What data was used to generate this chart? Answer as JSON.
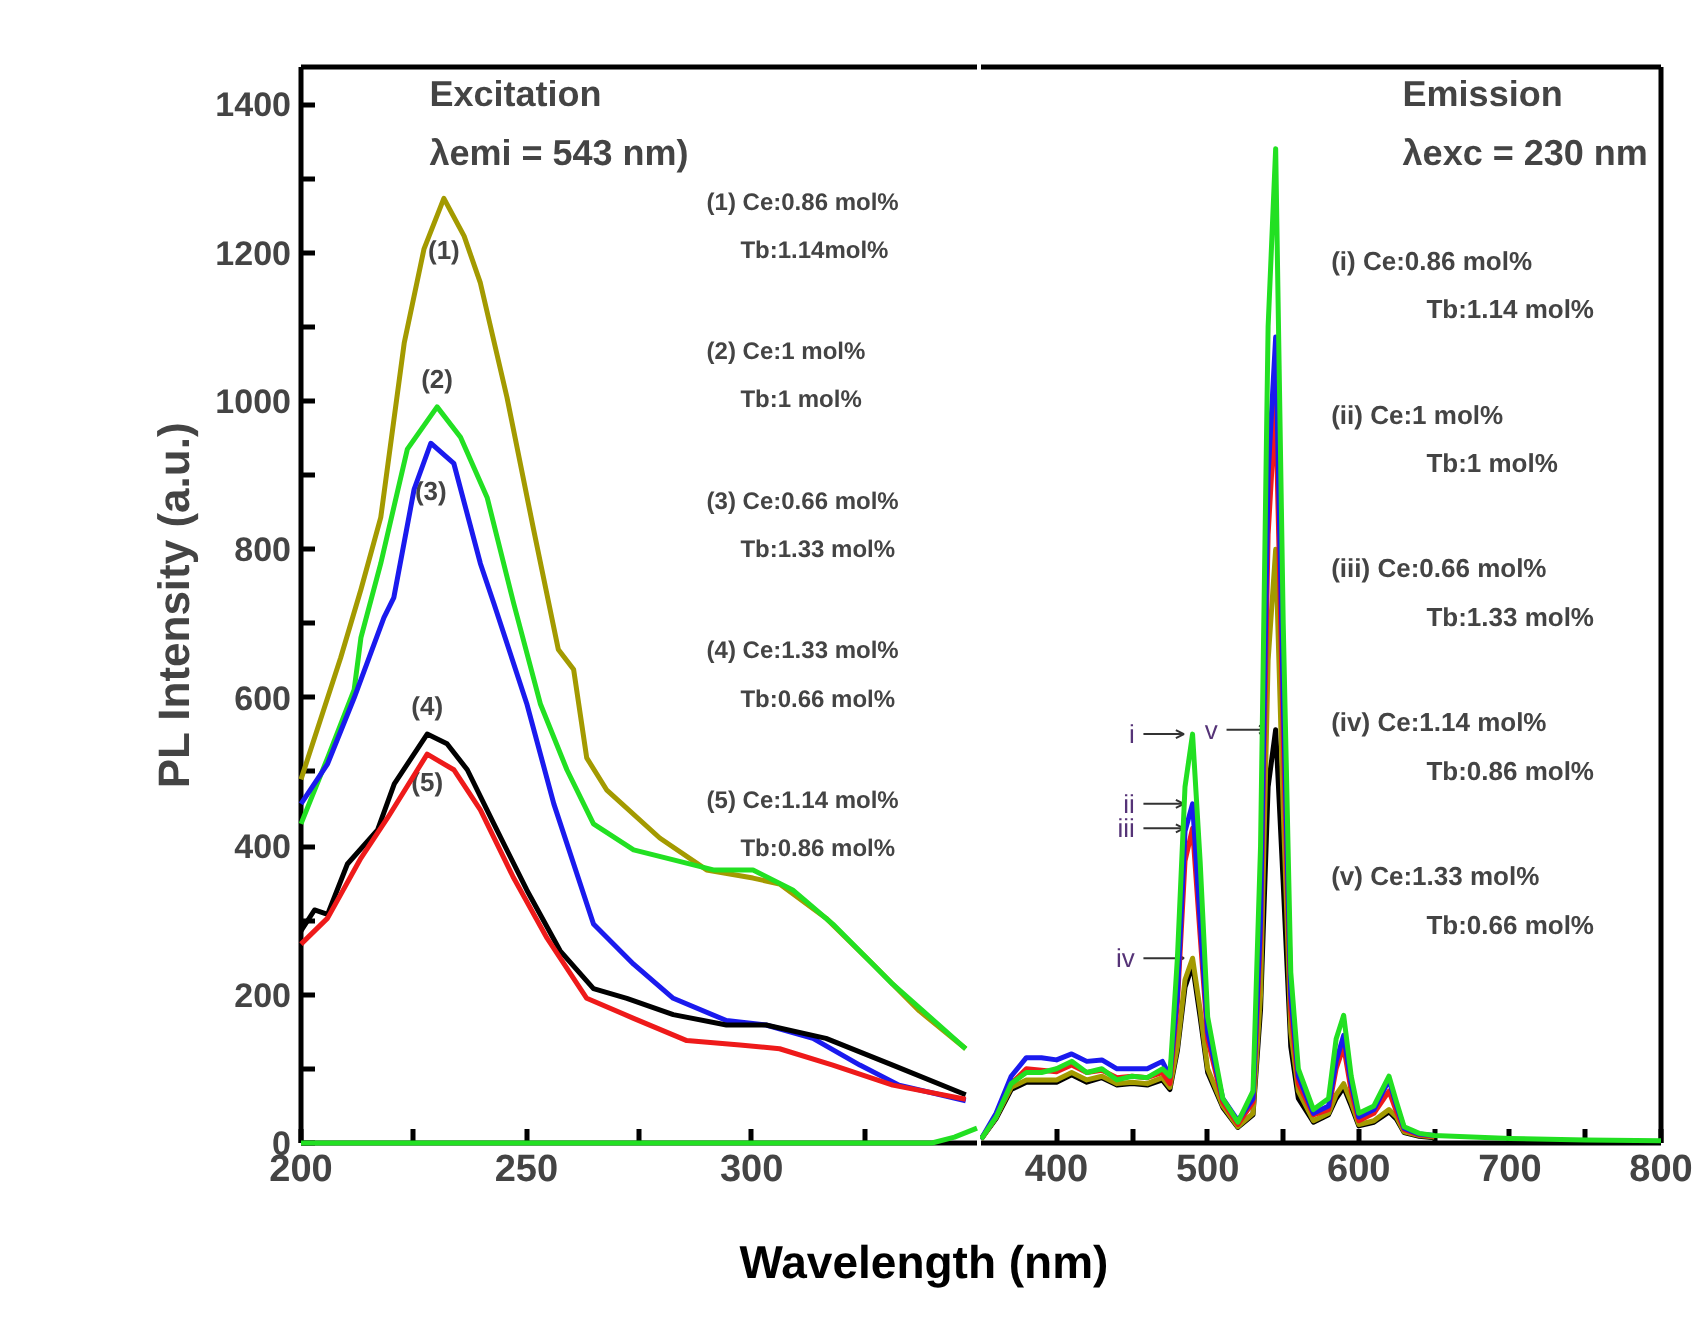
{
  "chart_data": [
    {
      "type": "line",
      "title": "Excitation",
      "subtitle": "λemi = 543 nm)",
      "xlabel": "Wavelength (nm)",
      "ylabel": "PL Intensity (a.u.)",
      "xlim": [
        200,
        350
      ],
      "ylim": [
        0,
        1450
      ],
      "xticks": [
        200,
        {
          "value": 225,
          "label": null
        },
        250,
        {
          "value": 275,
          "label": null
        },
        300,
        {
          "value": 325,
          "label": null
        }
      ],
      "yticks": [
        0,
        {
          "value": 100,
          "label": null
        },
        200,
        {
          "value": 300,
          "label": null
        },
        400,
        {
          "value": 500,
          "label": null
        },
        600,
        {
          "value": 700,
          "label": null
        },
        800,
        {
          "value": 900,
          "label": null
        },
        1000,
        {
          "value": 1100,
          "label": null
        },
        1200,
        {
          "value": 1300,
          "label": null
        },
        1400
      ],
      "grid": false,
      "series": [
        {
          "color": "#a39a00",
          "x": [
            200,
            208.8,
            213.3,
            217.7,
            222.9,
            227.3,
            231.7,
            236.2,
            239.8,
            245.7,
            251.6,
            257.1,
            260.5,
            263.4,
            267.8,
            279.6,
            290,
            300.3,
            306.2,
            316.5,
            326.9,
            337.2,
            347.5
          ],
          "values": [
            490,
            654,
            746,
            843,
            1078,
            1205,
            1273,
            1222,
            1159,
            1005,
            827,
            665,
            638,
            519,
            476,
            411,
            368,
            357,
            349,
            303,
            241,
            178,
            127
          ]
        },
        {
          "color": "#22e022",
          "x": [
            200,
            205.9,
            211.8,
            213.3,
            217.7,
            223.6,
            230.2,
            235.4,
            241.3,
            247.2,
            253.1,
            259,
            264.9,
            273.8,
            291.5,
            300.3,
            309.1,
            318,
            331.3,
            347.5
          ],
          "values": [
            430,
            519,
            611,
            681,
            781,
            935,
            992,
            951,
            870,
            727,
            592,
            503,
            430,
            395,
            368,
            368,
            341,
            295,
            214,
            127
          ]
        },
        {
          "color": "#1a1aee",
          "x": [
            200,
            205.9,
            211.8,
            218.4,
            220.6,
            225.1,
            228.8,
            233.9,
            239.8,
            242.8,
            250.1,
            256.1,
            264.9,
            273.8,
            282.6,
            294.4,
            303.2,
            313.6,
            324,
            332.7,
            347.5
          ],
          "values": [
            457,
            511,
            600,
            708,
            735,
            881,
            943,
            916,
            781,
            727,
            592,
            457,
            295,
            241,
            195,
            165,
            159,
            141,
            105,
            78,
            57
          ]
        },
        {
          "color": "#000000",
          "x": [
            200,
            203,
            205.9,
            210.3,
            217,
            220.7,
            228,
            232.4,
            236.9,
            242.8,
            250.1,
            257.5,
            264.9,
            272.3,
            282.6,
            294.4,
            303.2,
            316.5,
            331.3,
            347.5
          ],
          "values": [
            286,
            314,
            308,
            376,
            422,
            484,
            551,
            538,
            503,
            430,
            341,
            259,
            208,
            195,
            173,
            159,
            159,
            141,
            105,
            65
          ]
        },
        {
          "color": "#ee1a1a",
          "x": [
            200,
            205.9,
            213.3,
            219.2,
            228,
            233.9,
            239.8,
            247.2,
            254.6,
            263.4,
            273.8,
            285.6,
            297.4,
            306.2,
            318,
            331.3,
            347.5
          ],
          "values": [
            268,
            303,
            384,
            438,
            524,
            503,
            449,
            357,
            276,
            195,
            168,
            138,
            132,
            127,
            105,
            78,
            59
          ]
        },
        {
          "color": "#22e022",
          "x": [
            200,
            340,
            345,
            350
          ],
          "values": [
            0,
            0,
            8,
            20
          ]
        }
      ],
      "annotations": [
        "(1) Ce:0.86 mol%\nTb:1.14mol%",
        "(2) Ce:1 mol%\nTb:1 mol%",
        "(3) Ce:0.66 mol%\nTb:1.33 mol%",
        "(4) Ce:1.33 mol%\nTb:0.66 mol%",
        "(5) Ce:1.14 mol%\nTb:0.86 mol%",
        {
          "text": "(1)",
          "x": 231.7,
          "y": 1273
        },
        {
          "text": "(2)",
          "x": 230.2,
          "y": 992
        },
        {
          "text": "(3)",
          "x": 228.8,
          "y": 943
        },
        {
          "text": "(4)",
          "x": 228,
          "y": 551
        },
        {
          "text": "(5)",
          "x": 228,
          "y": 524
        }
      ]
    },
    {
      "type": "line",
      "title": "Emission",
      "subtitle": "λexc = 230 nm",
      "xlim": [
        350,
        800
      ],
      "ylim": [
        0,
        1450
      ],
      "xticks": [
        400,
        {
          "value": 450,
          "label": null
        },
        500,
        {
          "value": 550,
          "label": null
        },
        600,
        {
          "value": 650,
          "label": null
        },
        700,
        {
          "value": 750,
          "label": null
        },
        800
      ],
      "tick_labels": "x",
      "grid": false,
      "x": [
        350,
        360,
        370,
        380,
        390,
        400,
        410,
        420,
        430,
        440,
        450,
        460,
        470,
        475,
        480,
        485,
        490,
        495,
        500,
        510,
        520,
        530,
        535,
        540,
        545,
        550,
        555,
        560,
        570,
        580,
        585,
        590,
        595,
        600,
        610,
        620,
        625,
        630,
        640,
        650,
        700,
        750,
        800
      ],
      "series": [
        {
          "color": "#000000",
          "values": [
            5,
            33,
            72,
            82,
            82,
            82,
            92,
            82,
            88,
            78,
            80,
            78,
            85,
            72,
            125,
            210,
            240,
            170,
            95,
            48,
            21,
            38,
            180,
            480,
            557,
            350,
            130,
            60,
            28,
            38,
            60,
            75,
            50,
            23,
            28,
            42,
            32,
            14,
            9,
            7,
            null,
            null,
            null
          ]
        },
        {
          "color": "#a39a00",
          "values": [
            5,
            35,
            75,
            85,
            85,
            85,
            95,
            85,
            90,
            80,
            82,
            80,
            88,
            75,
            130,
            220,
            249,
            180,
            100,
            50,
            22,
            40,
            200,
            650,
            800,
            450,
            150,
            70,
            30,
            40,
            65,
            80,
            55,
            25,
            30,
            45,
            35,
            15,
            10,
            8,
            null,
            null,
            null
          ]
        },
        {
          "color": "#ee1a1a",
          "values": [
            5,
            35,
            80,
            100,
            98,
            96,
            105,
            95,
            98,
            88,
            90,
            88,
            95,
            80,
            190,
            380,
            424,
            280,
            140,
            55,
            25,
            55,
            280,
            820,
            997,
            550,
            180,
            80,
            38,
            45,
            100,
            130,
            70,
            30,
            40,
            70,
            42,
            18,
            11,
            9,
            null,
            null,
            null
          ]
        },
        {
          "color": "#1a1aee",
          "values": [
            5,
            40,
            90,
            115,
            115,
            112,
            120,
            110,
            112,
            100,
            100,
            100,
            110,
            90,
            200,
            420,
            457,
            300,
            150,
            60,
            30,
            60,
            300,
            900,
            1086,
            600,
            200,
            90,
            40,
            50,
            110,
            145,
            80,
            35,
            45,
            85,
            50,
            20,
            12,
            10,
            null,
            null,
            null
          ]
        },
        {
          "color": "#22e022",
          "values": [
            5,
            35,
            80,
            95,
            95,
            100,
            110,
            95,
            100,
            85,
            90,
            88,
            100,
            90,
            250,
            480,
            551,
            380,
            170,
            60,
            28,
            70,
            400,
            1100,
            1340,
            700,
            230,
            100,
            45,
            60,
            140,
            172,
            90,
            40,
            50,
            90,
            55,
            22,
            13,
            10,
            6,
            4,
            3
          ]
        }
      ],
      "annotations": [
        "(i) Ce:0.86 mol%\nTb:1.14 mol%",
        "(ii) Ce:1 mol%\nTb:1 mol%",
        "(iii) Ce:0.66 mol%\nTb:1.33 mol%",
        "(iv) Ce:1.14 mol%\nTb:0.86 mol%",
        "(v) Ce:1.33 mol%\nTb:0.66 mol%",
        {
          "text": "i",
          "x": 490,
          "y": 551
        },
        {
          "text": "ii",
          "x": 490,
          "y": 457
        },
        {
          "text": "iii",
          "x": 490,
          "y": 424
        },
        {
          "text": "iv",
          "x": 490,
          "y": 249
        },
        {
          "text": "v",
          "x": 545,
          "y": 557
        }
      ]
    }
  ]
}
